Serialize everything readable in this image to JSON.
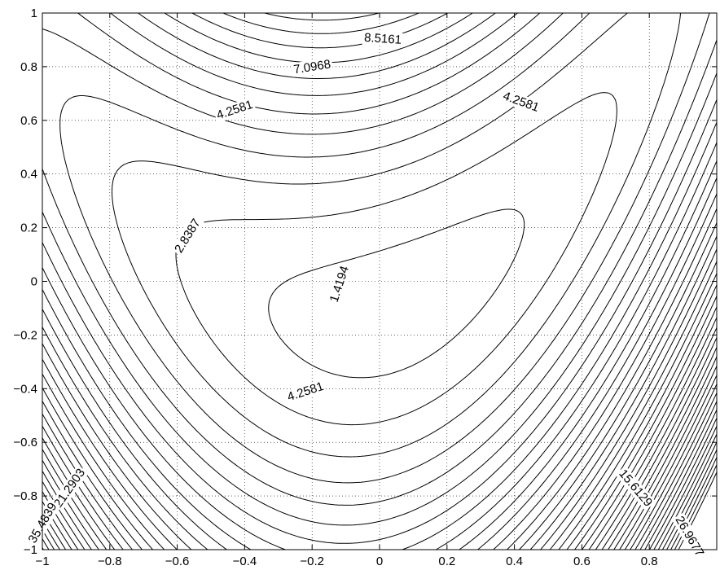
{
  "chart_data": {
    "type": "contour",
    "title": "",
    "xlabel": "",
    "ylabel": "",
    "xlim": [
      -1,
      1
    ],
    "ylim": [
      -1,
      1
    ],
    "xticks": [
      -1,
      -0.8,
      -0.6,
      -0.4,
      -0.2,
      0,
      0.2,
      0.4,
      0.6,
      0.8
    ],
    "yticks": [
      -1,
      -0.8,
      -0.6,
      -0.4,
      -0.2,
      0,
      0.2,
      0.4,
      0.6,
      0.8,
      1
    ],
    "xtick_labels": [
      "−1",
      "−0.8",
      "−0.6",
      "−0.4",
      "−0.2",
      "0",
      "0.2",
      "0.4",
      "0.6",
      "0.8"
    ],
    "ytick_labels": [
      "−1",
      "−0.8",
      "−0.6",
      "−0.4",
      "−0.2",
      "0",
      "0.2",
      "0.4",
      "0.6",
      "0.8",
      "1"
    ],
    "grid": true,
    "grid_style": "dotted",
    "line_color": "#000000",
    "level_step": 1.4194,
    "labeled_levels": [
      {
        "label": "1.4194",
        "x": -0.12,
        "y": -0.01,
        "angle": 72
      },
      {
        "label": "2.8387",
        "x": -0.57,
        "y": 0.17,
        "angle": 58
      },
      {
        "label": "4.2581",
        "x": -0.43,
        "y": 0.64,
        "angle": 18
      },
      {
        "label": "4.2581",
        "x": 0.42,
        "y": 0.67,
        "angle": -20
      },
      {
        "label": "4.2581",
        "x": -0.22,
        "y": -0.41,
        "angle": 18
      },
      {
        "label": "7.0968",
        "x": -0.2,
        "y": 0.8,
        "angle": 9
      },
      {
        "label": "8.5161",
        "x": 0.01,
        "y": 0.905,
        "angle": -4
      },
      {
        "label": "15.6129",
        "x": 0.76,
        "y": -0.77,
        "angle": -50
      },
      {
        "label": "21.2903",
        "x": -0.92,
        "y": -0.77,
        "angle": 55
      },
      {
        "label": "26.9677",
        "x": 0.92,
        "y": -0.95,
        "angle": -60
      },
      {
        "label": "35.4839",
        "x": -1,
        "y": -0.9,
        "angle": 60
      }
    ]
  }
}
